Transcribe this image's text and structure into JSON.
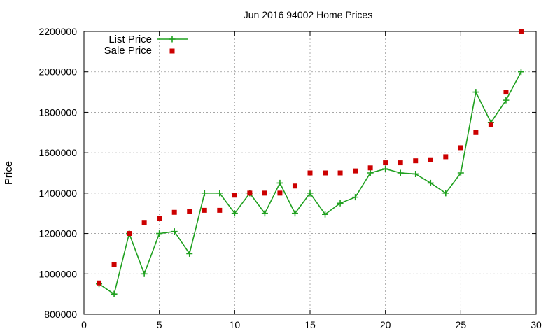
{
  "chart_data": {
    "type": "line",
    "title": "Jun 2016 94002 Home Prices",
    "xlabel": "",
    "ylabel": "Price",
    "xlim": [
      0,
      30
    ],
    "ylim": [
      800000,
      2200000
    ],
    "xticks": [
      0,
      5,
      10,
      15,
      20,
      25,
      30
    ],
    "yticks": [
      800000,
      1000000,
      1200000,
      1400000,
      1600000,
      1800000,
      2000000,
      2200000
    ],
    "grid": true,
    "legend_position": "top-left",
    "series": [
      {
        "name": "List Price",
        "style": "line-plus",
        "color": "#1fa01f",
        "x": [
          1,
          2,
          3,
          4,
          5,
          6,
          7,
          8,
          9,
          10,
          11,
          12,
          13,
          14,
          15,
          16,
          17,
          18,
          19,
          20,
          21,
          22,
          23,
          24,
          25,
          26,
          27,
          28,
          29
        ],
        "y": [
          950000,
          900000,
          1200000,
          1000000,
          1200000,
          1210000,
          1100000,
          1400000,
          1400000,
          1300000,
          1400000,
          1300000,
          1450000,
          1300000,
          1400000,
          1295000,
          1350000,
          1380000,
          1500000,
          1520000,
          1500000,
          1495000,
          1450000,
          1400000,
          1500000,
          1900000,
          1750000,
          1860000,
          2000000
        ]
      },
      {
        "name": "Sale Price",
        "style": "square-points",
        "color": "#cc0000",
        "x": [
          1,
          2,
          3,
          4,
          5,
          6,
          7,
          8,
          9,
          10,
          11,
          12,
          13,
          14,
          15,
          16,
          17,
          18,
          19,
          20,
          21,
          22,
          23,
          24,
          25,
          26,
          27,
          28,
          29
        ],
        "y": [
          955000,
          1045000,
          1200000,
          1255000,
          1275000,
          1305000,
          1310000,
          1315000,
          1315000,
          1390000,
          1400000,
          1400000,
          1400000,
          1435000,
          1500000,
          1500000,
          1500000,
          1510000,
          1525000,
          1550000,
          1550000,
          1560000,
          1565000,
          1580000,
          1625000,
          1700000,
          1740000,
          1900000,
          2200000
        ]
      }
    ]
  }
}
